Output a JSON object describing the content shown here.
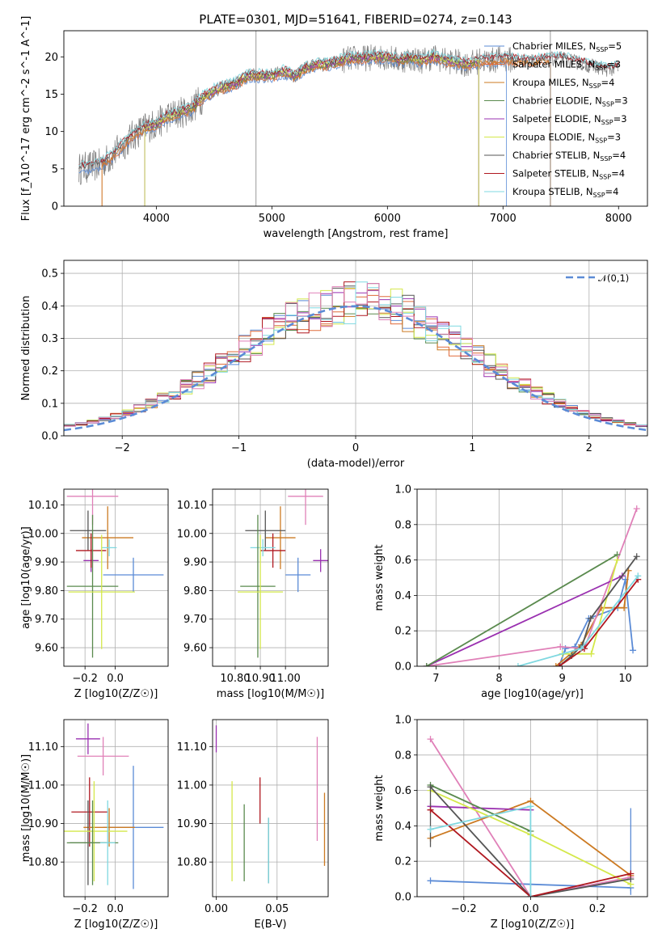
{
  "title": "PLATE=0301, MJD=51641, FIBERID=0274, z=0.143",
  "colors": {
    "Chabrier MILES": "#5b8bd6",
    "Salpeter MILES": "#e06b3a",
    "Kroupa MILES": "#cc7a22",
    "Chabrier ELODIE": "#5a8a4e",
    "Salpeter ELODIE": "#9a30b0",
    "Kroupa ELODIE": "#d4e84a",
    "Chabrier STELIB": "#555555",
    "Salpeter STELIB": "#b01820",
    "Kroupa STELIB": "#7fd8e0",
    "extra": "#e080b8"
  },
  "chart_data": [
    {
      "type": "line",
      "name": "spectrum",
      "xlabel": "wavelength [Angstrom, rest frame]",
      "ylabel": "Flux [f_λ10^-17 erg cm^-2 s^-1 A^-1]",
      "xlim": [
        3200,
        8250
      ],
      "ylim": [
        0,
        23.5
      ],
      "xticks": [
        4000,
        5000,
        6000,
        7000,
        8000
      ],
      "yticks": [
        0,
        5,
        10,
        15,
        20
      ],
      "legend_position": "top-right",
      "legend": [
        {
          "label": "Chabrier MILES, N",
          "sub": "SSP",
          "suffix": "=5",
          "key": "Chabrier MILES"
        },
        {
          "label": "Salpeter MILES, N",
          "sub": "SSP",
          "suffix": "=3",
          "key": "Salpeter MILES"
        },
        {
          "label": "Kroupa MILES, N",
          "sub": "SSP",
          "suffix": "=4",
          "key": "Kroupa MILES"
        },
        {
          "label": "Chabrier ELODIE, N",
          "sub": "SSP",
          "suffix": "=3",
          "key": "Chabrier ELODIE"
        },
        {
          "label": "Salpeter ELODIE, N",
          "sub": "SSP",
          "suffix": "=3",
          "key": "Salpeter ELODIE"
        },
        {
          "label": "Kroupa ELODIE, N",
          "sub": "SSP",
          "suffix": "=3",
          "key": "Kroupa ELODIE"
        },
        {
          "label": "Chabrier STELIB, N",
          "sub": "SSP",
          "suffix": "=4",
          "key": "Chabrier STELIB"
        },
        {
          "label": "Salpeter STELIB, N",
          "sub": "SSP",
          "suffix": "=4",
          "key": "Salpeter STELIB"
        },
        {
          "label": "Kroupa STELIB, N",
          "sub": "SSP",
          "suffix": "=4",
          "key": "Kroupa STELIB"
        }
      ],
      "continuum": [
        [
          3330,
          5.0
        ],
        [
          3400,
          5.2
        ],
        [
          3500,
          5.5
        ],
        [
          3600,
          6.5
        ],
        [
          3700,
          8.0
        ],
        [
          3800,
          9.5
        ],
        [
          3900,
          10.5
        ],
        [
          4000,
          11.0
        ],
        [
          4100,
          12.0
        ],
        [
          4200,
          12.5
        ],
        [
          4300,
          13.0
        ],
        [
          4400,
          14.5
        ],
        [
          4500,
          15.5
        ],
        [
          4600,
          16.0
        ],
        [
          4700,
          16.5
        ],
        [
          4800,
          17.5
        ],
        [
          4900,
          17.5
        ],
        [
          5000,
          17.5
        ],
        [
          5100,
          18.0
        ],
        [
          5200,
          17.5
        ],
        [
          5300,
          18.5
        ],
        [
          5400,
          19.0
        ],
        [
          5500,
          19.0
        ],
        [
          5600,
          19.5
        ],
        [
          5700,
          19.8
        ],
        [
          5800,
          19.8
        ],
        [
          5900,
          20.0
        ],
        [
          6000,
          20.0
        ],
        [
          6100,
          19.5
        ],
        [
          6200,
          19.8
        ],
        [
          6300,
          19.5
        ],
        [
          6400,
          20.0
        ],
        [
          6500,
          19.5
        ],
        [
          6600,
          19.3
        ],
        [
          6700,
          19.0
        ],
        [
          6800,
          19.5
        ],
        [
          6900,
          19.5
        ],
        [
          7000,
          19.8
        ],
        [
          7100,
          19.5
        ],
        [
          7300,
          19.5
        ],
        [
          7500,
          19.8
        ],
        [
          7700,
          19.0
        ],
        [
          7900,
          18.3
        ],
        [
          8000,
          18.5
        ]
      ],
      "model_ranges": {
        "Chabrier MILES": [
          3330,
          7030
        ],
        "Salpeter MILES": [
          3530,
          7410
        ],
        "Kroupa MILES": [
          3530,
          7410
        ],
        "Chabrier ELODIE": [
          3900,
          6790
        ],
        "Salpeter ELODIE": [
          3900,
          6790
        ],
        "Kroupa ELODIE": [
          3900,
          6790
        ],
        "Chabrier STELIB": [
          3330,
          8000
        ],
        "Salpeter STELIB": [
          3330,
          8000
        ],
        "Kroupa STELIB": [
          3330,
          8000
        ]
      },
      "vertical_lines": [
        4863,
        7410
      ]
    },
    {
      "type": "line",
      "name": "residual_histogram",
      "xlabel": "(data-model)/error",
      "ylabel": "Normed distribution",
      "xlim": [
        -2.5,
        2.5
      ],
      "ylim": [
        0,
        0.54
      ],
      "xticks": [
        -2,
        -1,
        0,
        1,
        2
      ],
      "yticks": [
        0.0,
        0.1,
        0.2,
        0.3,
        0.4,
        0.5
      ],
      "grid": true,
      "legend_position": "top-right",
      "reference_curve": {
        "label": "𝒩(0,1)",
        "mean": 0,
        "sigma": 1
      },
      "bin_width": 0.1
    },
    {
      "type": "scatter",
      "name": "age_vs_Z",
      "xlabel": "Z [log10(Z/Z☉)]",
      "ylabel": "age [log10(age/yr)]",
      "xlim": [
        -0.34,
        0.35
      ],
      "ylim": [
        9.535,
        10.155
      ],
      "xticks": [
        -0.2,
        0.0
      ],
      "yticks": [
        9.6,
        9.7,
        9.8,
        9.9,
        10.0,
        10.1
      ],
      "points": [
        {
          "c": "extra",
          "x": -0.15,
          "xerr": 0.17,
          "y": 10.13,
          "yerr": 0.1
        },
        {
          "c": "Kroupa MILES",
          "x": -0.05,
          "xerr": 0.17,
          "y": 9.985,
          "yerr": 0.11
        },
        {
          "c": "Chabrier MILES",
          "x": 0.12,
          "xerr": 0.2,
          "y": 9.855,
          "yerr": 0.06
        },
        {
          "c": "Chabrier STELIB",
          "x": -0.18,
          "xerr": 0.12,
          "y": 10.01,
          "yerr": 0.07
        },
        {
          "c": "Salpeter ELODIE",
          "x": -0.16,
          "xerr": 0.05,
          "y": 9.905,
          "yerr": 0.04
        },
        {
          "c": "Salpeter STELIB",
          "x": -0.16,
          "xerr": 0.1,
          "y": 9.94,
          "yerr": 0.06
        },
        {
          "c": "Kroupa STELIB",
          "x": -0.04,
          "xerr": 0.05,
          "y": 9.95,
          "yerr": 0.03
        },
        {
          "c": "Chabrier ELODIE",
          "x": -0.15,
          "xerr": 0.17,
          "y": 9.815,
          "yerr": 0.25
        },
        {
          "c": "Kroupa ELODIE",
          "x": -0.09,
          "xerr": 0.22,
          "y": 9.795,
          "yerr": 0.2
        }
      ]
    },
    {
      "type": "scatter",
      "name": "age_vs_mass",
      "xlabel": "mass [log10(M/M☉)]",
      "ylabel": "",
      "xlim": [
        10.71,
        11.17
      ],
      "ylim": [
        9.535,
        10.155
      ],
      "xticks": [
        10.8,
        10.9,
        11.0
      ],
      "yticks": [
        9.6,
        9.7,
        9.8,
        9.9,
        10.0,
        10.1
      ],
      "points": [
        {
          "c": "extra",
          "x": 11.08,
          "xerr": 0.07,
          "y": 10.13,
          "yerr": 0.1
        },
        {
          "c": "Kroupa MILES",
          "x": 10.98,
          "xerr": 0.06,
          "y": 9.985,
          "yerr": 0.11
        },
        {
          "c": "Chabrier MILES",
          "x": 11.05,
          "xerr": 0.05,
          "y": 9.855,
          "yerr": 0.06
        },
        {
          "c": "Salpeter ELODIE",
          "x": 11.14,
          "xerr": 0.03,
          "y": 9.905,
          "yerr": 0.04
        },
        {
          "c": "Chabrier STELIB",
          "x": 10.92,
          "xerr": 0.08,
          "y": 10.01,
          "yerr": 0.07
        },
        {
          "c": "Salpeter STELIB",
          "x": 10.95,
          "xerr": 0.05,
          "y": 9.94,
          "yerr": 0.06
        },
        {
          "c": "Kroupa STELIB",
          "x": 10.91,
          "xerr": 0.05,
          "y": 9.95,
          "yerr": 0.03
        },
        {
          "c": "Chabrier ELODIE",
          "x": 10.89,
          "xerr": 0.07,
          "y": 9.815,
          "yerr": 0.25
        },
        {
          "c": "Kroupa ELODIE",
          "x": 10.9,
          "xerr": 0.09,
          "y": 9.795,
          "yerr": 0.2
        }
      ]
    },
    {
      "type": "line",
      "name": "mass_weight_vs_age",
      "xlabel": "age [log10(age/yr)]",
      "ylabel": "mass weight",
      "xlim": [
        6.7,
        10.35
      ],
      "ylim": [
        0,
        1.0
      ],
      "xticks": [
        7,
        8,
        9,
        10
      ],
      "yticks": [
        0.0,
        0.2,
        0.4,
        0.6,
        0.8,
        1.0
      ],
      "grid": true,
      "series": [
        {
          "c": "Chabrier MILES",
          "points": [
            [
              8.95,
              0.0
            ],
            [
              9.05,
              0.1
            ],
            [
              9.2,
              0.11
            ],
            [
              9.42,
              0.27
            ],
            [
              9.88,
              0.33
            ],
            [
              10.0,
              0.49
            ],
            [
              10.12,
              0.09
            ]
          ]
        },
        {
          "c": "Kroupa MILES",
          "points": [
            [
              8.9,
              0.0
            ],
            [
              9.3,
              0.12
            ],
            [
              9.62,
              0.33
            ],
            [
              9.98,
              0.33
            ],
            [
              10.05,
              0.54
            ]
          ]
        },
        {
          "c": "extra",
          "points": [
            [
              6.85,
              0.0
            ],
            [
              8.97,
              0.11
            ],
            [
              9.35,
              0.1
            ],
            [
              10.18,
              0.89
            ]
          ]
        },
        {
          "c": "Salpeter ELODIE",
          "points": [
            [
              6.85,
              0.0
            ],
            [
              9.95,
              0.51
            ]
          ]
        },
        {
          "c": "Chabrier ELODIE",
          "points": [
            [
              6.85,
              0.0
            ],
            [
              9.87,
              0.63
            ]
          ]
        },
        {
          "c": "Kroupa ELODIE",
          "points": [
            [
              9.0,
              0.07
            ],
            [
              9.46,
              0.07
            ],
            [
              9.87,
              0.6
            ]
          ]
        },
        {
          "c": "Chabrier STELIB",
          "points": [
            [
              8.95,
              0.0
            ],
            [
              9.15,
              0.06
            ],
            [
              9.32,
              0.12
            ],
            [
              9.45,
              0.27
            ],
            [
              10.18,
              0.62
            ]
          ]
        },
        {
          "c": "Salpeter STELIB",
          "points": [
            [
              8.95,
              0.0
            ],
            [
              9.35,
              0.1
            ],
            [
              10.2,
              0.49
            ]
          ]
        },
        {
          "c": "Kroupa STELIB",
          "points": [
            [
              8.3,
              0.0
            ],
            [
              9.3,
              0.1
            ],
            [
              10.2,
              0.51
            ]
          ]
        }
      ]
    },
    {
      "type": "scatter",
      "name": "mass_vs_Z",
      "xlabel": "Z [log10(Z/Z☉)]",
      "ylabel": "mass [log10(M/M☉)]",
      "xlim": [
        -0.34,
        0.35
      ],
      "ylim": [
        10.71,
        11.17
      ],
      "xticks": [
        -0.2,
        0.0
      ],
      "yticks": [
        10.8,
        10.9,
        11.0,
        11.1
      ],
      "points": [
        {
          "c": "Salpeter ELODIE",
          "x": -0.18,
          "xerr": 0.08,
          "y": 11.12,
          "yerr": 0.04
        },
        {
          "c": "extra",
          "x": -0.08,
          "xerr": 0.17,
          "y": 11.075,
          "yerr": 0.05
        },
        {
          "c": "Chabrier MILES",
          "x": 0.12,
          "xerr": 0.2,
          "y": 10.89,
          "yerr": 0.16
        },
        {
          "c": "Salpeter STELIB",
          "x": -0.17,
          "xerr": 0.12,
          "y": 10.93,
          "yerr": 0.09
        },
        {
          "c": "Kroupa MILES",
          "x": -0.04,
          "xerr": 0.17,
          "y": 10.89,
          "yerr": 0.05
        },
        {
          "c": "Chabrier STELIB",
          "x": -0.18,
          "xerr": 0.12,
          "y": 10.85,
          "yerr": 0.11
        },
        {
          "c": "Kroupa ELODIE",
          "x": -0.14,
          "xerr": 0.22,
          "y": 10.88,
          "yerr": 0.13
        },
        {
          "c": "Chabrier ELODIE",
          "x": -0.15,
          "xerr": 0.17,
          "y": 10.85,
          "yerr": 0.11
        },
        {
          "c": "Kroupa STELIB",
          "x": -0.05,
          "xerr": 0.05,
          "y": 10.85,
          "yerr": 0.11
        }
      ]
    },
    {
      "type": "scatter",
      "name": "mass_vs_EBV",
      "xlabel": "E(B-V)",
      "ylabel": "",
      "xlim": [
        -0.003,
        0.092
      ],
      "ylim": [
        10.71,
        11.17
      ],
      "xticks": [
        0.0,
        0.05
      ],
      "yticks": [
        10.8,
        10.9,
        11.0,
        11.1
      ],
      "points": [
        {
          "c": "Salpeter ELODIE",
          "x": 0.0,
          "y": 11.12,
          "yerr": 0.035
        },
        {
          "c": "Kroupa ELODIE",
          "x": 0.013,
          "y": 10.88,
          "yerr": 0.13
        },
        {
          "c": "Chabrier ELODIE",
          "x": 0.023,
          "y": 10.85,
          "yerr": 0.1
        },
        {
          "c": "Salpeter STELIB",
          "x": 0.036,
          "y": 10.96,
          "yerr": 0.06
        },
        {
          "c": "Chabrier STELIB",
          "x": 0.043,
          "y": 10.83,
          "yerr": 0.085
        },
        {
          "c": "Kroupa STELIB",
          "x": 0.043,
          "y": 10.83,
          "yerr": 0.085
        },
        {
          "c": "extra",
          "x": 0.083,
          "y": 10.99,
          "yerr": 0.135
        },
        {
          "c": "Kroupa MILES",
          "x": 0.089,
          "y": 10.885,
          "yerr": 0.095
        }
      ]
    },
    {
      "type": "line",
      "name": "mass_weight_vs_Z",
      "xlabel": "Z [log10(Z/Z☉)]",
      "ylabel": "mass weight",
      "xlim": [
        -0.34,
        0.35
      ],
      "ylim": [
        0,
        1.0
      ],
      "xticks": [
        -0.2,
        0.0,
        0.2
      ],
      "yticks": [
        0.0,
        0.2,
        0.4,
        0.6,
        0.8,
        1.0
      ],
      "grid": true,
      "series": [
        {
          "c": "Chabrier MILES",
          "points": [
            [
              -0.3,
              0.09
            ],
            [
              0.0,
              0.07
            ],
            [
              0.3,
              0.05
            ]
          ],
          "errbars": [
            [
              0.3,
              0.01,
              0.5
            ]
          ]
        },
        {
          "c": "extra",
          "points": [
            [
              -0.3,
              0.89
            ],
            [
              0.0,
              0.0
            ],
            [
              0.3,
              0.11
            ]
          ]
        },
        {
          "c": "Kroupa MILES",
          "points": [
            [
              -0.3,
              0.33
            ],
            [
              0.0,
              0.54
            ],
            [
              0.3,
              0.12
            ]
          ]
        },
        {
          "c": "Salpeter ELODIE",
          "points": [
            [
              -0.3,
              0.51
            ],
            [
              0.0,
              0.49
            ]
          ]
        },
        {
          "c": "Chabrier ELODIE",
          "points": [
            [
              -0.3,
              0.63
            ],
            [
              0.0,
              0.37
            ]
          ]
        },
        {
          "c": "Kroupa ELODIE",
          "points": [
            [
              -0.3,
              0.6
            ],
            [
              0.0,
              0.35
            ],
            [
              0.3,
              0.07
            ]
          ]
        },
        {
          "c": "Chabrier STELIB",
          "points": [
            [
              -0.3,
              0.62
            ],
            [
              0.0,
              0.0
            ],
            [
              0.3,
              0.1
            ]
          ],
          "errbars": [
            [
              -0.3,
              0.28,
              0.62
            ]
          ]
        },
        {
          "c": "Salpeter STELIB",
          "points": [
            [
              -0.3,
              0.49
            ],
            [
              0.0,
              0.0
            ],
            [
              0.3,
              0.13
            ]
          ]
        },
        {
          "c": "Kroupa STELIB",
          "points": [
            [
              -0.3,
              0.38
            ],
            [
              0.0,
              0.51
            ],
            [
              0.0,
              0.0
            ]
          ]
        }
      ]
    }
  ]
}
